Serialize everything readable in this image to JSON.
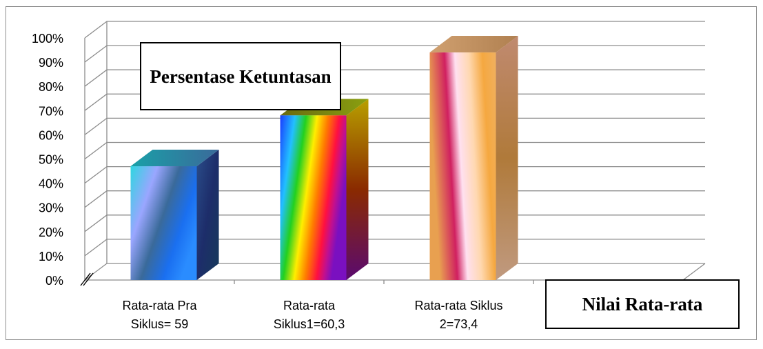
{
  "chart_data": {
    "type": "bar",
    "title": "Persentase Ketuntasan",
    "xlabel": "Nilai Rata-rata",
    "ylabel": "",
    "categories": [
      [
        "Rata-rata Pra",
        "Siklus= 59"
      ],
      [
        "Rata-rata",
        "Siklus1=60,3"
      ],
      [
        "Rata-rata Siklus",
        "2=73,4"
      ]
    ],
    "values": [
      47,
      68,
      94
    ],
    "ylim": [
      0,
      100
    ],
    "yticks": [
      "0%",
      "10%",
      "20%",
      "30%",
      "40%",
      "50%",
      "60%",
      "70%",
      "80%",
      "90%",
      "100%"
    ],
    "grid": true,
    "legend": "none",
    "three_d": true
  }
}
